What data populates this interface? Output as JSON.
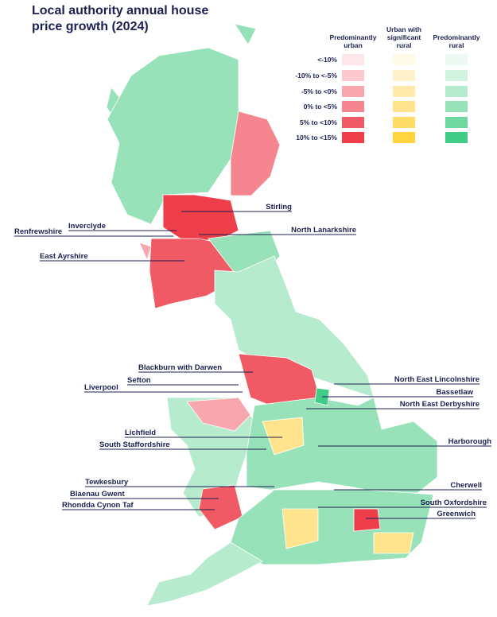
{
  "title": "Local authority annual house price growth (2024)",
  "legend": {
    "rows": [
      "<-10%",
      "-10% to <-5%",
      "-5% to <0%",
      "0% to <5%",
      "5% to <10%",
      "10% to <15%"
    ],
    "columns": [
      {
        "label": "Predominantly urban",
        "colors": [
          "#fde7ea",
          "#fcc9ce",
          "#f9a7ae",
          "#f5868f",
          "#f05a64",
          "#ed3e4a"
        ]
      },
      {
        "label": "Urban with significant rural",
        "colors": [
          "#fff9e8",
          "#fff1c9",
          "#ffeaab",
          "#ffe48d",
          "#ffdb68",
          "#ffd43f"
        ]
      },
      {
        "label": "Predominantly rural",
        "colors": [
          "#edfaf3",
          "#d3f3e1",
          "#b7ebce",
          "#97e2b9",
          "#6fd7a0",
          "#41cd87"
        ]
      }
    ]
  },
  "labels": [
    "Stirling",
    "Inverclyde",
    "Renfrewshire",
    "North Lanarkshire",
    "East Ayrshire",
    "Blackburn with Darwen",
    "Sefton",
    "Liverpool",
    "North East Lincolnshire",
    "Bassetlaw",
    "North East Derbyshire",
    "Lichfield",
    "South Staffordshire",
    "Harborough",
    "Tewkesbury",
    "Cherwell",
    "Blaenau Gwent",
    "Rhondda Cynon Taf",
    "South Oxfordshire",
    "Greenwich"
  ]
}
